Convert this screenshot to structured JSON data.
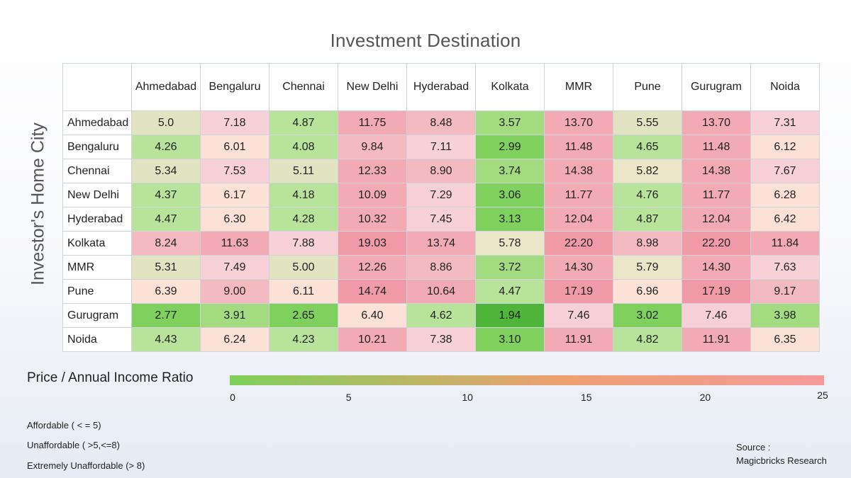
{
  "chart_data": {
    "type": "heatmap",
    "title": "Investment Destination",
    "ylabel": "Investor's Home City",
    "columns": [
      "Ahmedabad",
      "Bengaluru",
      "Chennai",
      "New Delhi",
      "Hyderabad",
      "Kolkata",
      "MMR",
      "Pune",
      "Gurugram",
      "Noida"
    ],
    "rows": [
      {
        "city": "Ahmedabad",
        "values": [
          "5.0",
          "7.18",
          "4.87",
          "11.75",
          "8.48",
          "3.57",
          "13.70",
          "5.55",
          "13.70",
          "7.31"
        ]
      },
      {
        "city": "Bengaluru",
        "values": [
          "4.26",
          "6.01",
          "4.08",
          "9.84",
          "7.11",
          "2.99",
          "11.48",
          "4.65",
          "11.48",
          "6.12"
        ]
      },
      {
        "city": "Chennai",
        "values": [
          "5.34",
          "7.53",
          "5.11",
          "12.33",
          "8.90",
          "3.74",
          "14.38",
          "5.82",
          "14.38",
          "7.67"
        ]
      },
      {
        "city": "New Delhi",
        "values": [
          "4.37",
          "6.17",
          "4.18",
          "10.09",
          "7.29",
          "3.06",
          "11.77",
          "4.76",
          "11.77",
          "6.28"
        ]
      },
      {
        "city": "Hyderabad",
        "values": [
          "4.47",
          "6.30",
          "4.28",
          "10.32",
          "7.45",
          "3.13",
          "12.04",
          "4.87",
          "12.04",
          "6.42"
        ]
      },
      {
        "city": "Kolkata",
        "values": [
          "8.24",
          "11.63",
          "7.88",
          "19.03",
          "13.74",
          "5.78",
          "22.20",
          "8.98",
          "22.20",
          "11.84"
        ]
      },
      {
        "city": "MMR",
        "values": [
          "5.31",
          "7.49",
          "5.00",
          "12.26",
          "8.86",
          "3.72",
          "14.30",
          "5.79",
          "14.30",
          "7.63"
        ]
      },
      {
        "city": "Pune",
        "values": [
          "6.39",
          "9.00",
          "6.11",
          "14.74",
          "10.64",
          "4.47",
          "17.19",
          "6.96",
          "17.19",
          "9.17"
        ]
      },
      {
        "city": "Gurugram",
        "values": [
          "2.77",
          "3.91",
          "2.65",
          "6.40",
          "4.62",
          "1.94",
          "7.46",
          "3.02",
          "7.46",
          "3.98"
        ]
      },
      {
        "city": "Noida",
        "values": [
          "4.43",
          "6.24",
          "4.23",
          "10.21",
          "7.38",
          "3.10",
          "11.91",
          "4.82",
          "11.91",
          "6.35"
        ]
      }
    ],
    "color_scale": {
      "title": "Price / Annual Income Ratio",
      "range": [
        0,
        25
      ],
      "ticks": [
        "0",
        "5",
        "10",
        "15",
        "20",
        "25"
      ],
      "low_color": "#7ed05a",
      "high_color": "#f59a9a"
    }
  },
  "notes": [
    "Affordable ( < = 5)",
    "Unaffordable ( >5,<=8)",
    "Extremely Unaffordable (> 8)"
  ],
  "source": {
    "label": "Source :",
    "name": "Magicbricks Research"
  }
}
